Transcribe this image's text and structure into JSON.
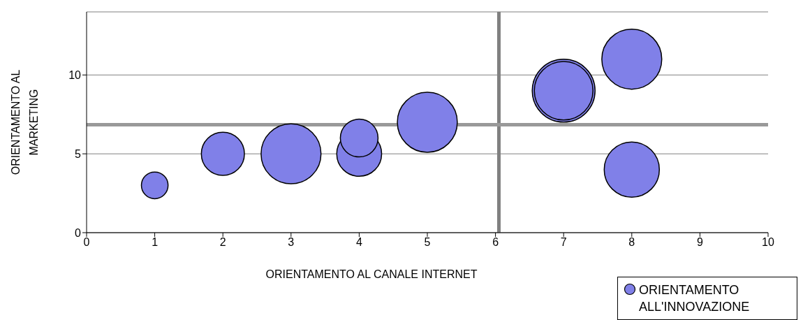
{
  "chart_data": {
    "type": "bubble",
    "xlabel": "ORIENTAMENTO AL CANALE INTERNET",
    "ylabel": "ORIENTAMENTO AL MARKETING",
    "series": [
      {
        "name": "ORIENTAMENTO ALL'INNOVAZIONE",
        "color": "#8080e8",
        "x": [
          1,
          2,
          3,
          4,
          4,
          5,
          7,
          7,
          8,
          8
        ],
        "values": [
          3,
          5,
          5,
          5,
          6,
          7,
          9,
          9,
          11,
          4
        ],
        "sizes": [
          0.18,
          0.47,
          0.91,
          0.51,
          0.36,
          0.91,
          1,
          0.87,
          0.91,
          0.77
        ]
      }
    ],
    "xlim": [
      0,
      10
    ],
    "xticks": [
      0,
      1,
      2,
      3,
      4,
      5,
      6,
      7,
      8,
      9,
      10
    ],
    "ylim": [
      0,
      14
    ],
    "yticks": [
      0,
      5,
      10
    ],
    "ref_lines": [
      {
        "axis": "x",
        "value": 6.05,
        "color": "#808080"
      },
      {
        "axis": "y",
        "value": 6.85,
        "color": "#999999"
      }
    ],
    "grid": "y",
    "legend": "bottom right"
  }
}
